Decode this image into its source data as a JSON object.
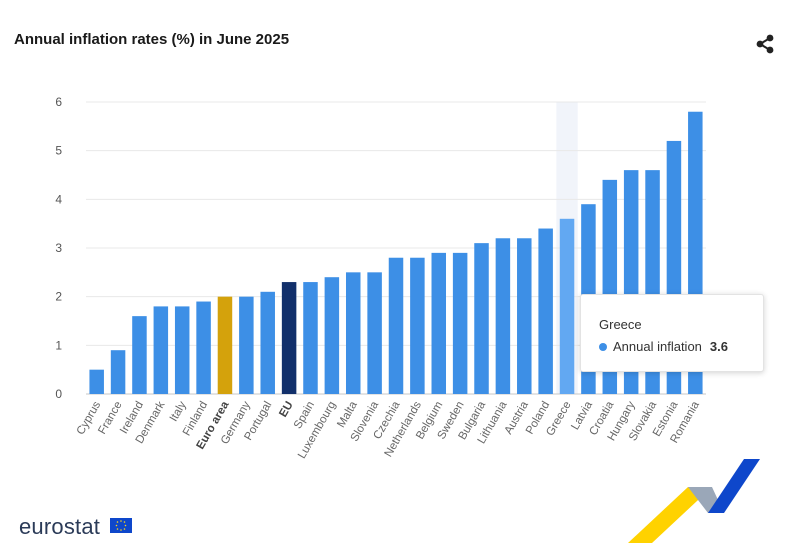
{
  "header": {
    "title": "Annual inflation rates (%) in June 2025",
    "share_icon": "share-icon"
  },
  "tooltip": {
    "country": "Greece",
    "series_label": "Annual inflation",
    "value": "3.6"
  },
  "footer": {
    "logo_text": "eurostat"
  },
  "colors": {
    "bar": "#3d8fe6",
    "highlight": "#62a8f2",
    "euro_area": "#d4a20c",
    "eu": "#12306b",
    "hover_band": "#f1f4fa"
  },
  "chart_data": {
    "type": "bar",
    "title": "Annual inflation rates (%) in June 2025",
    "xlabel": "",
    "ylabel": "",
    "ylim": [
      0,
      6
    ],
    "yticks": [
      0,
      1,
      2,
      3,
      4,
      5,
      6
    ],
    "categories": [
      "Cyprus",
      "France",
      "Ireland",
      "Denmark",
      "Italy",
      "Finland",
      "Euro area",
      "Germany",
      "Portugal",
      "EU",
      "Spain",
      "Luxembourg",
      "Malta",
      "Slovenia",
      "Czechia",
      "Netherlands",
      "Belgium",
      "Sweden",
      "Bulgaria",
      "Lithuania",
      "Austria",
      "Poland",
      "Greece",
      "Latvia",
      "Croatia",
      "Hungary",
      "Slovakia",
      "Estonia",
      "Romania"
    ],
    "series": [
      {
        "name": "Annual inflation",
        "values": [
          0.5,
          0.9,
          1.6,
          1.8,
          1.8,
          1.9,
          2.0,
          2.0,
          2.1,
          2.3,
          2.3,
          2.4,
          2.5,
          2.5,
          2.8,
          2.8,
          2.9,
          2.9,
          3.1,
          3.2,
          3.2,
          3.4,
          3.6,
          3.9,
          4.4,
          4.6,
          4.6,
          5.2,
          5.8
        ]
      }
    ],
    "bold_categories": [
      "Euro area",
      "EU"
    ],
    "highlighted": "Greece"
  }
}
